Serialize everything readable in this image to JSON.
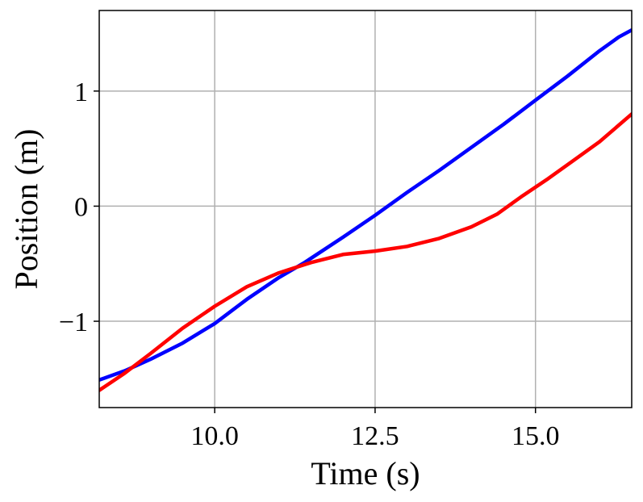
{
  "chart_data": {
    "type": "line",
    "title": "",
    "xlabel": "Time (s)",
    "ylabel": "Position (m)",
    "xlim": [
      8.2,
      16.5
    ],
    "ylim": [
      -1.75,
      1.7
    ],
    "grid": true,
    "legend": "none",
    "xticks": [
      {
        "value": 10.0,
        "label": "10.0"
      },
      {
        "value": 12.5,
        "label": "12.5"
      },
      {
        "value": 15.0,
        "label": "15.0"
      }
    ],
    "yticks": [
      {
        "value": 1,
        "label": "1"
      },
      {
        "value": 0,
        "label": "0"
      },
      {
        "value": -1,
        "label": "−1"
      }
    ],
    "series": [
      {
        "color": "#0000ff",
        "points": [
          [
            8.2,
            -1.51
          ],
          [
            8.6,
            -1.43
          ],
          [
            9.0,
            -1.33
          ],
          [
            9.5,
            -1.19
          ],
          [
            10.0,
            -1.02
          ],
          [
            10.5,
            -0.81
          ],
          [
            11.0,
            -0.62
          ],
          [
            11.4,
            -0.49
          ],
          [
            12.0,
            -0.27
          ],
          [
            12.5,
            -0.08
          ],
          [
            13.0,
            0.12
          ],
          [
            13.5,
            0.31
          ],
          [
            14.0,
            0.51
          ],
          [
            14.5,
            0.71
          ],
          [
            15.0,
            0.92
          ],
          [
            15.5,
            1.13
          ],
          [
            16.0,
            1.35
          ],
          [
            16.3,
            1.47
          ],
          [
            16.5,
            1.53
          ]
        ]
      },
      {
        "color": "#ff0000",
        "points": [
          [
            8.2,
            -1.6
          ],
          [
            8.6,
            -1.45
          ],
          [
            9.0,
            -1.28
          ],
          [
            9.5,
            -1.06
          ],
          [
            10.0,
            -0.87
          ],
          [
            10.5,
            -0.7
          ],
          [
            11.0,
            -0.58
          ],
          [
            11.5,
            -0.49
          ],
          [
            12.0,
            -0.42
          ],
          [
            12.5,
            -0.39
          ],
          [
            13.0,
            -0.35
          ],
          [
            13.5,
            -0.28
          ],
          [
            14.0,
            -0.18
          ],
          [
            14.4,
            -0.07
          ],
          [
            14.8,
            0.09
          ],
          [
            15.2,
            0.24
          ],
          [
            15.6,
            0.4
          ],
          [
            16.0,
            0.56
          ],
          [
            16.5,
            0.8
          ]
        ]
      }
    ]
  }
}
